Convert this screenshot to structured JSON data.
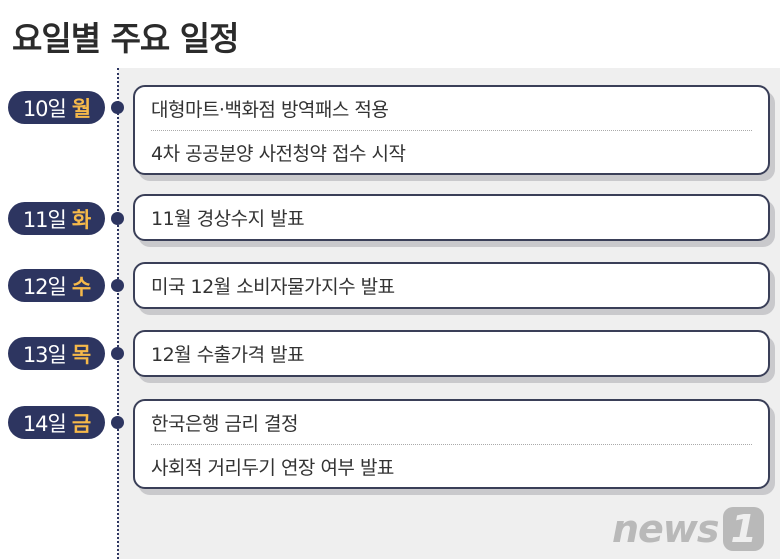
{
  "title": "요일별 주요 일정",
  "accent": "#f6b94a",
  "navy": "#2d3560",
  "days": [
    {
      "day": "10일",
      "weekday": "월",
      "events": [
        "대형마트·백화점 방역패스 적용",
        "4차 공공분양 사전청약 접수 시작"
      ]
    },
    {
      "day": "11일",
      "weekday": "화",
      "events": [
        "11월 경상수지 발표"
      ]
    },
    {
      "day": "12일",
      "weekday": "수",
      "events": [
        "미국 12월 소비자물가지수 발표"
      ]
    },
    {
      "day": "13일",
      "weekday": "목",
      "events": [
        "12월 수출가격 발표"
      ]
    },
    {
      "day": "14일",
      "weekday": "금",
      "events": [
        "한국은행 금리 결정",
        "사회적 거리두기 연장 여부 발표"
      ]
    }
  ],
  "logo": {
    "text": "news",
    "mark": "1"
  }
}
